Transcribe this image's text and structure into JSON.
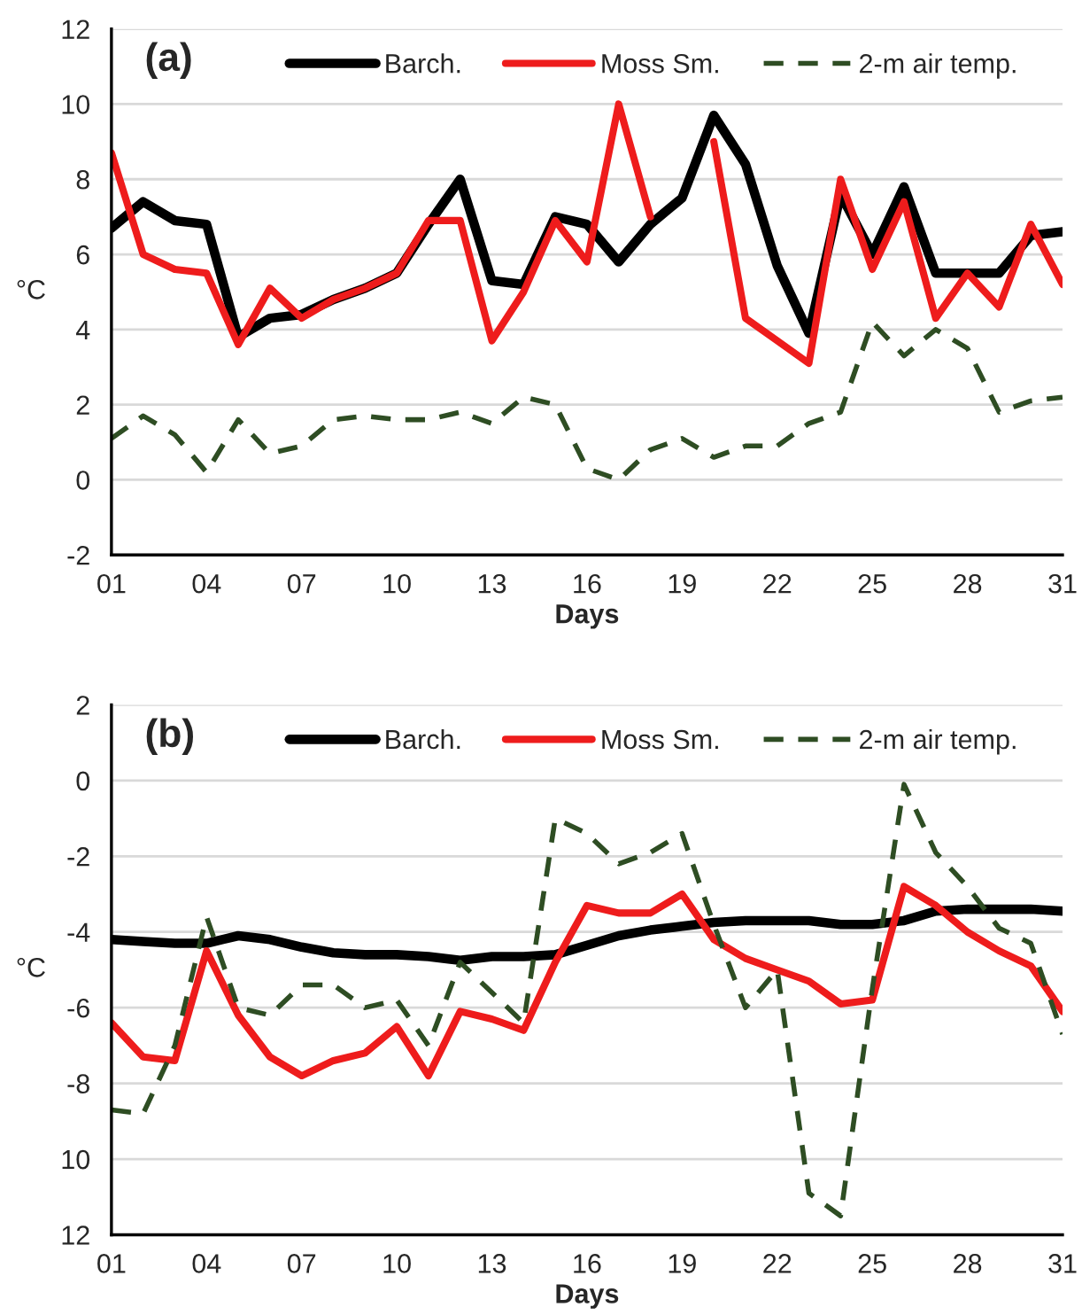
{
  "chart_data": [
    {
      "type": "line",
      "title": "(a)",
      "xlabel": "Days",
      "ylabel": "°C",
      "x": [
        1,
        2,
        3,
        4,
        5,
        6,
        7,
        8,
        9,
        10,
        11,
        12,
        13,
        14,
        15,
        16,
        17,
        18,
        19,
        20,
        21,
        22,
        23,
        24,
        25,
        26,
        27,
        28,
        29,
        30,
        31
      ],
      "series": [
        {
          "name": "Barch.",
          "color": "#000000",
          "line_style": "solid",
          "values": [
            6.7,
            7.4,
            6.9,
            6.8,
            3.8,
            4.3,
            4.4,
            4.8,
            5.1,
            5.5,
            6.8,
            8.0,
            5.3,
            5.2,
            7.0,
            6.8,
            5.8,
            6.8,
            7.5,
            9.7,
            8.4,
            5.7,
            3.9,
            7.6,
            6.0,
            7.8,
            5.5,
            5.5,
            5.5,
            6.5,
            6.6
          ]
        },
        {
          "name": "Moss Sm.",
          "color": "#ee1c1c",
          "line_style": "solid",
          "values": [
            8.7,
            6.0,
            5.6,
            5.5,
            3.6,
            5.1,
            4.3,
            4.8,
            5.1,
            5.5,
            6.9,
            6.9,
            3.7,
            5.0,
            6.9,
            5.8,
            10.0,
            7.0,
            null,
            9.0,
            4.3,
            3.7,
            3.1,
            8.0,
            5.6,
            7.4,
            4.3,
            5.5,
            4.6,
            6.8,
            5.2
          ]
        },
        {
          "name": "2-m air temp.",
          "color": "#2e4d23",
          "line_style": "dashed",
          "values": [
            1.1,
            1.7,
            1.2,
            0.2,
            1.6,
            0.7,
            0.9,
            1.6,
            1.7,
            1.6,
            1.6,
            1.8,
            1.5,
            2.2,
            2.0,
            0.3,
            0.0,
            0.8,
            1.1,
            0.6,
            0.9,
            0.9,
            1.5,
            1.8,
            4.2,
            3.3,
            4.0,
            3.5,
            1.8,
            2.1,
            2.2
          ]
        }
      ],
      "xlim": [
        1,
        31
      ],
      "xticks": [
        {
          "value": 1,
          "label": "01"
        },
        {
          "value": 4,
          "label": "04"
        },
        {
          "value": 7,
          "label": "07"
        },
        10,
        13,
        16,
        19,
        22,
        25,
        28,
        31
      ],
      "ylim": [
        -2,
        12
      ],
      "yticks": [
        -2,
        0,
        2,
        4,
        6,
        8,
        10,
        12
      ],
      "grid": "y",
      "legend": "top"
    },
    {
      "type": "line",
      "title": "(b)",
      "xlabel": "Days",
      "ylabel": "°C",
      "x": [
        1,
        2,
        3,
        4,
        5,
        6,
        7,
        8,
        9,
        10,
        11,
        12,
        13,
        14,
        15,
        16,
        17,
        18,
        19,
        20,
        21,
        22,
        23,
        24,
        25,
        26,
        27,
        28,
        29,
        30,
        31
      ],
      "series": [
        {
          "name": "Barch.",
          "color": "#000000",
          "line_style": "solid",
          "values": [
            -4.2,
            -4.25,
            -4.3,
            -4.3,
            -4.1,
            -4.2,
            -4.4,
            -4.55,
            -4.6,
            -4.6,
            -4.65,
            -4.75,
            -4.65,
            -4.65,
            -4.6,
            -4.35,
            -4.1,
            -3.95,
            -3.85,
            -3.75,
            -3.7,
            -3.7,
            -3.7,
            -3.8,
            -3.8,
            -3.7,
            -3.45,
            -3.4,
            -3.4,
            -3.4,
            -3.45
          ]
        },
        {
          "name": "Moss Sm.",
          "color": "#ee1c1c",
          "line_style": "solid",
          "values": [
            -6.4,
            -7.3,
            -7.4,
            -4.5,
            -6.2,
            -7.3,
            -7.8,
            -7.4,
            -7.2,
            -6.5,
            -7.8,
            -6.1,
            -6.3,
            -6.6,
            -4.8,
            -3.3,
            -3.5,
            -3.5,
            -3.0,
            -4.2,
            -4.7,
            -5.0,
            -5.3,
            -5.9,
            -5.8,
            -2.8,
            -3.3,
            -4.0,
            -4.5,
            -4.9,
            -6.1
          ]
        },
        {
          "name": "2-m air temp.",
          "color": "#2e4d23",
          "line_style": "dashed",
          "values": [
            -8.7,
            -8.8,
            -7.0,
            -3.6,
            -6.0,
            -6.2,
            -5.4,
            -5.4,
            -6.0,
            -5.8,
            -7.0,
            -4.8,
            -5.6,
            -6.4,
            -1.0,
            -1.4,
            -2.2,
            -1.9,
            -1.4,
            -3.8,
            -6.0,
            -5.0,
            -10.9,
            -11.5,
            -5.5,
            -0.1,
            -1.9,
            -2.8,
            -3.9,
            -4.3,
            -6.7
          ]
        }
      ],
      "xlim": [
        1,
        31
      ],
      "xticks": [
        {
          "value": 1,
          "label": "01"
        },
        {
          "value": 4,
          "label": "04"
        },
        {
          "value": 7,
          "label": "07"
        },
        10,
        13,
        16,
        19,
        22,
        25,
        28,
        31
      ],
      "ylim": [
        -12,
        2
      ],
      "yticks": [
        {
          "value": -12,
          "label": "12"
        },
        {
          "value": -10,
          "label": "10"
        },
        -8,
        -6,
        -4,
        -2,
        0,
        2
      ],
      "grid": "y",
      "legend": "top"
    }
  ]
}
